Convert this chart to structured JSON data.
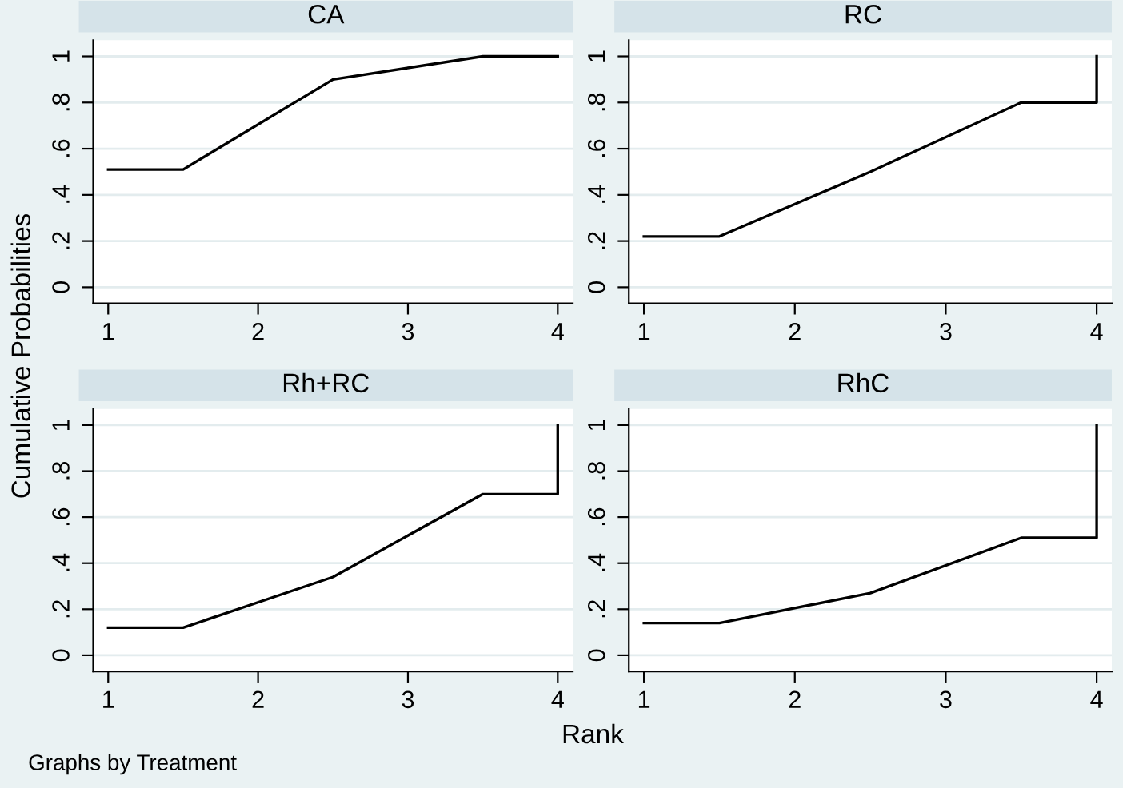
{
  "chart_data": [
    {
      "type": "line",
      "title": "CA",
      "ylabel": "Cumulative Probabilities",
      "xlim": [
        0.9,
        4.1
      ],
      "ylim": [
        -0.07,
        1.07
      ],
      "xticks": [
        1,
        2,
        3,
        4
      ],
      "yticks": [
        {
          "value": 0,
          "label": "0"
        },
        {
          "value": 0.2,
          "label": ".2"
        },
        {
          "value": 0.4,
          "label": ".4"
        },
        {
          "value": 0.6,
          "label": ".6"
        },
        {
          "value": 0.8,
          "label": ".8"
        },
        {
          "value": 1,
          "label": "1"
        }
      ],
      "grid": "y",
      "legend": false,
      "series": [
        {
          "color": "#000000",
          "x": [
            1,
            1.5,
            2.5,
            3.5,
            4,
            4
          ],
          "values": [
            0.51,
            0.51,
            0.9,
            1.0,
            1.0,
            1.0
          ]
        }
      ]
    },
    {
      "type": "line",
      "title": "RC",
      "xlim": [
        0.9,
        4.1
      ],
      "ylim": [
        -0.07,
        1.07
      ],
      "xticks": [
        1,
        2,
        3,
        4
      ],
      "yticks": [
        {
          "value": 0,
          "label": "0"
        },
        {
          "value": 0.2,
          "label": ".2"
        },
        {
          "value": 0.4,
          "label": ".4"
        },
        {
          "value": 0.6,
          "label": ".6"
        },
        {
          "value": 0.8,
          "label": ".8"
        },
        {
          "value": 1,
          "label": "1"
        }
      ],
      "grid": "y",
      "legend": false,
      "series": [
        {
          "color": "#000000",
          "x": [
            1,
            1.5,
            2.5,
            3.5,
            4,
            4
          ],
          "values": [
            0.22,
            0.22,
            0.5,
            0.8,
            0.8,
            1.0
          ]
        }
      ]
    },
    {
      "type": "line",
      "title": "Rh+RC",
      "annotations": [
        "Graphs by Treatment"
      ],
      "xlim": [
        0.9,
        4.1
      ],
      "ylim": [
        -0.07,
        1.07
      ],
      "xticks": [
        1,
        2,
        3,
        4
      ],
      "yticks": [
        {
          "value": 0,
          "label": "0"
        },
        {
          "value": 0.2,
          "label": ".2"
        },
        {
          "value": 0.4,
          "label": ".4"
        },
        {
          "value": 0.6,
          "label": ".6"
        },
        {
          "value": 0.8,
          "label": ".8"
        },
        {
          "value": 1,
          "label": "1"
        }
      ],
      "grid": "y",
      "legend": false,
      "series": [
        {
          "color": "#000000",
          "x": [
            1,
            1.5,
            2.5,
            3.5,
            4,
            4
          ],
          "values": [
            0.12,
            0.12,
            0.34,
            0.7,
            0.7,
            1.0
          ]
        }
      ]
    },
    {
      "type": "line",
      "title": "RhC",
      "xlabel": "Rank",
      "xlim": [
        0.9,
        4.1
      ],
      "ylim": [
        -0.07,
        1.07
      ],
      "xticks": [
        1,
        2,
        3,
        4
      ],
      "yticks": [
        {
          "value": 0,
          "label": "0"
        },
        {
          "value": 0.2,
          "label": ".2"
        },
        {
          "value": 0.4,
          "label": ".4"
        },
        {
          "value": 0.6,
          "label": ".6"
        },
        {
          "value": 0.8,
          "label": ".8"
        },
        {
          "value": 1,
          "label": "1"
        }
      ],
      "grid": "y",
      "legend": false,
      "series": [
        {
          "color": "#000000",
          "x": [
            1,
            1.5,
            2.5,
            3.5,
            4,
            4
          ],
          "values": [
            0.14,
            0.14,
            0.27,
            0.51,
            0.51,
            1.0
          ]
        }
      ]
    }
  ]
}
